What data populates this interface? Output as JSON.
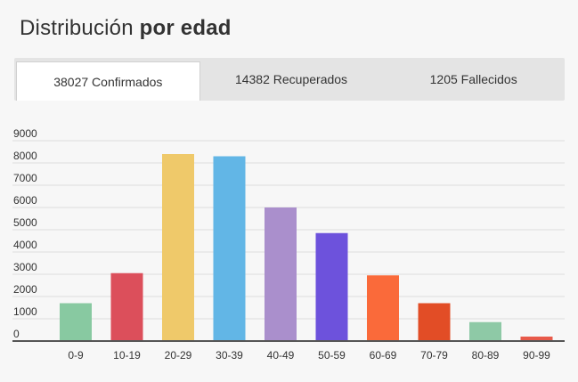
{
  "header": {
    "title_regular": "Distribución ",
    "title_bold": "por edad"
  },
  "tabs": [
    {
      "label": "38027 Confirmados",
      "active": true
    },
    {
      "label": "14382 Recuperados",
      "active": false
    },
    {
      "label": "1205 Fallecidos",
      "active": false
    }
  ],
  "chart_data": {
    "type": "bar",
    "categories": [
      "0-9",
      "10-19",
      "20-29",
      "30-39",
      "40-49",
      "50-59",
      "60-69",
      "70-79",
      "80-89",
      "90-99"
    ],
    "values": [
      1700,
      3050,
      8400,
      8300,
      6000,
      4850,
      2950,
      1700,
      850,
      200
    ],
    "colors": [
      "#88c9a1",
      "#dc4f5b",
      "#efc96a",
      "#62b6e6",
      "#aa8fcc",
      "#6d52dc",
      "#fa6a3a",
      "#e24d26",
      "#8ec9a6",
      "#e85a4a"
    ],
    "yticks": [
      0,
      1000,
      2000,
      3000,
      4000,
      5000,
      6000,
      7000,
      8000,
      9000
    ],
    "ylim": [
      0,
      9000
    ],
    "grid": true,
    "title": "",
    "xlabel": "",
    "ylabel": ""
  }
}
